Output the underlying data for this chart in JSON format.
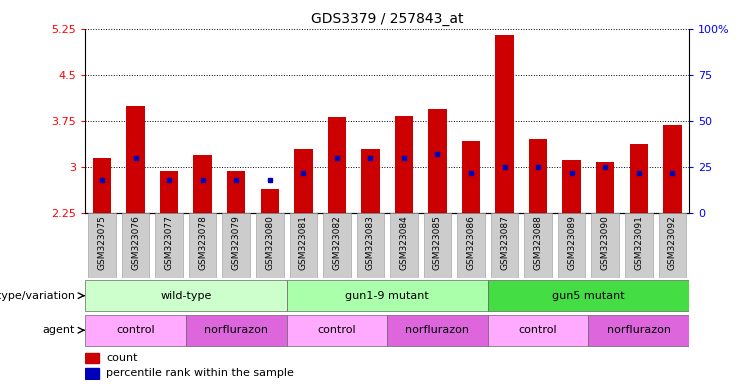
{
  "title": "GDS3379 / 257843_at",
  "samples": [
    "GSM323075",
    "GSM323076",
    "GSM323077",
    "GSM323078",
    "GSM323079",
    "GSM323080",
    "GSM323081",
    "GSM323082",
    "GSM323083",
    "GSM323084",
    "GSM323085",
    "GSM323086",
    "GSM323087",
    "GSM323088",
    "GSM323089",
    "GSM323090",
    "GSM323091",
    "GSM323092"
  ],
  "counts": [
    3.15,
    4.0,
    2.93,
    3.2,
    2.93,
    2.65,
    3.3,
    3.82,
    3.3,
    3.83,
    3.95,
    3.42,
    5.15,
    3.45,
    3.12,
    3.08,
    3.38,
    3.68
  ],
  "percentile_ranks": [
    18,
    30,
    18,
    18,
    18,
    18,
    22,
    30,
    30,
    30,
    32,
    22,
    25,
    25,
    22,
    25,
    22,
    22
  ],
  "ymin": 2.25,
  "ymax": 5.25,
  "yticks": [
    2.25,
    3.0,
    3.75,
    4.5,
    5.25
  ],
  "ytick_labels": [
    "2.25",
    "3",
    "3.75",
    "4.5",
    "5.25"
  ],
  "right_yticks": [
    0,
    25,
    50,
    75,
    100
  ],
  "right_ytick_labels": [
    "0",
    "25",
    "50",
    "75",
    "100%"
  ],
  "bar_color": "#CC0000",
  "marker_color": "#0000BB",
  "bar_bottom": 2.25,
  "genotype_groups": [
    {
      "label": "wild-type",
      "start": 0,
      "end": 6,
      "color": "#CCFFCC"
    },
    {
      "label": "gun1-9 mutant",
      "start": 6,
      "end": 12,
      "color": "#AAFFAA"
    },
    {
      "label": "gun5 mutant",
      "start": 12,
      "end": 18,
      "color": "#44DD44"
    }
  ],
  "agent_groups": [
    {
      "label": "control",
      "start": 0,
      "end": 3,
      "color": "#FFAAFF"
    },
    {
      "label": "norflurazon",
      "start": 3,
      "end": 6,
      "color": "#DD66DD"
    },
    {
      "label": "control",
      "start": 6,
      "end": 9,
      "color": "#FFAAFF"
    },
    {
      "label": "norflurazon",
      "start": 9,
      "end": 12,
      "color": "#DD66DD"
    },
    {
      "label": "control",
      "start": 12,
      "end": 15,
      "color": "#FFAAFF"
    },
    {
      "label": "norflurazon",
      "start": 15,
      "end": 18,
      "color": "#DD66DD"
    }
  ],
  "legend_count_label": "count",
  "legend_percentile_label": "percentile rank within the sample",
  "genotype_label": "genotype/variation",
  "agent_label": "agent",
  "grid_color": "black",
  "xtick_bg": "#CCCCCC"
}
